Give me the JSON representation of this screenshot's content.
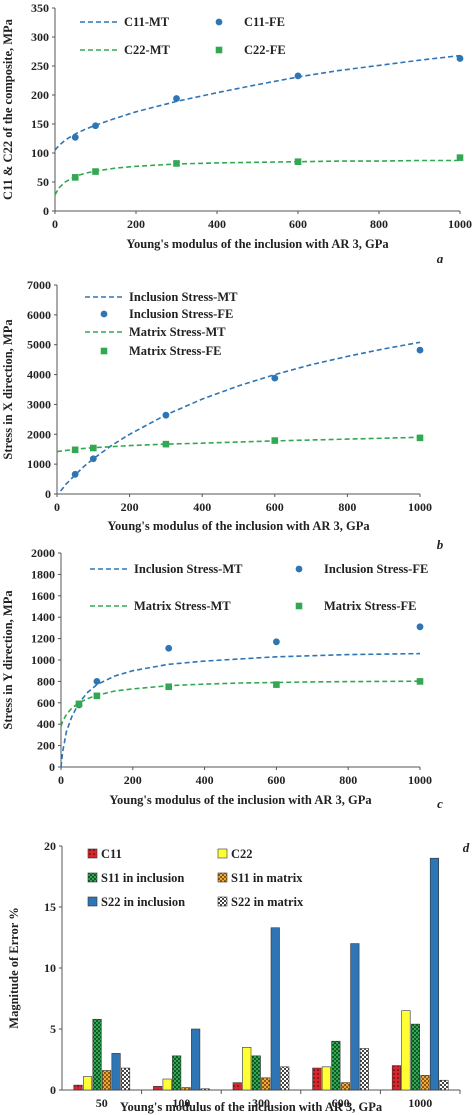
{
  "chart_data": [
    {
      "panel_label": "a",
      "type": "line",
      "xlabel": "Young's modulus of the inclusion with AR 3, GPa",
      "ylabel": "C11 & C22 of the composite, MPa",
      "xlim": [
        0,
        1000
      ],
      "ylim": [
        0,
        350
      ],
      "xticks": [
        "0",
        "200",
        "400",
        "600",
        "800",
        "1000"
      ],
      "yticks": [
        "0",
        "50",
        "100",
        "150",
        "200",
        "250",
        "300",
        "350"
      ],
      "grid": false,
      "legend_placement": "top",
      "series": [
        {
          "name": "C11-MT",
          "style": "dashed",
          "color": "#2e75b6",
          "x": [
            0,
            10,
            25,
            50,
            75,
            100,
            150,
            200,
            300,
            400,
            500,
            600,
            700,
            800,
            900,
            1000
          ],
          "y": [
            105,
            113,
            122,
            133,
            141,
            148,
            160,
            171,
            189,
            204,
            218,
            231,
            242,
            251,
            260,
            268
          ]
        },
        {
          "name": "C11-FE",
          "marker": "circle",
          "color": "#2e75b6",
          "x": [
            50,
            100,
            300,
            600,
            1000
          ],
          "y": [
            127,
            147,
            194,
            233,
            263
          ]
        },
        {
          "name": "C22-MT",
          "style": "dashed",
          "color": "#33a852",
          "x": [
            0,
            10,
            25,
            50,
            75,
            100,
            150,
            200,
            300,
            400,
            500,
            600,
            700,
            800,
            900,
            1000
          ],
          "y": [
            28,
            40,
            50,
            60,
            65,
            69,
            74,
            77,
            81,
            83,
            84,
            85,
            86,
            86,
            87,
            87
          ]
        },
        {
          "name": "C22-FE",
          "marker": "square",
          "color": "#33a852",
          "x": [
            50,
            100,
            300,
            600,
            1000
          ],
          "y": [
            58,
            68,
            82,
            85,
            92
          ]
        }
      ]
    },
    {
      "panel_label": "b",
      "type": "line",
      "xlabel": "Young's modulus of the inclusion with AR 3, GPa",
      "ylabel": "Stress in X direction, MPa",
      "xlim": [
        0,
        1000
      ],
      "ylim": [
        0,
        7000
      ],
      "xticks": [
        "0",
        "200",
        "400",
        "600",
        "800",
        "1000"
      ],
      "yticks": [
        "0",
        "1000",
        "2000",
        "3000",
        "4000",
        "5000",
        "6000",
        "7000"
      ],
      "grid": false,
      "legend_placement": "top-left",
      "series": [
        {
          "name": "Inclusion Stress-MT",
          "style": "dashed",
          "color": "#2e75b6",
          "x": [
            10,
            25,
            50,
            75,
            100,
            150,
            200,
            300,
            400,
            500,
            600,
            700,
            800,
            900,
            1000
          ],
          "y": [
            100,
            330,
            640,
            930,
            1180,
            1620,
            2000,
            2650,
            3180,
            3620,
            4000,
            4330,
            4610,
            4860,
            5080
          ]
        },
        {
          "name": "Inclusion Stress-FE",
          "marker": "circle",
          "color": "#2e75b6",
          "x": [
            50,
            100,
            300,
            600,
            1000
          ],
          "y": [
            660,
            1180,
            2640,
            3880,
            4820
          ]
        },
        {
          "name": "Matrix Stress-MT",
          "style": "dashed",
          "color": "#33a852",
          "x": [
            0,
            50,
            100,
            200,
            300,
            400,
            500,
            600,
            700,
            800,
            900,
            1000
          ],
          "y": [
            1420,
            1500,
            1550,
            1620,
            1670,
            1700,
            1740,
            1780,
            1810,
            1840,
            1870,
            1900
          ]
        },
        {
          "name": "Matrix Stress-FE",
          "marker": "square",
          "color": "#33a852",
          "x": [
            50,
            100,
            300,
            600,
            1000
          ],
          "y": [
            1480,
            1540,
            1670,
            1790,
            1880
          ]
        }
      ]
    },
    {
      "panel_label": "c",
      "type": "line",
      "xlabel": "Young's modulus of the inclusion with AR 3, GPa",
      "ylabel": "Stress in Y direction, MPa",
      "xlim": [
        0,
        1000
      ],
      "ylim": [
        0,
        2000
      ],
      "xticks": [
        "0",
        "200",
        "400",
        "600",
        "800",
        "1000"
      ],
      "yticks": [
        "0",
        "200",
        "400",
        "600",
        "800",
        "1000",
        "1200",
        "1400",
        "1600",
        "1800",
        "2000"
      ],
      "grid": false,
      "legend_placement": "top",
      "series": [
        {
          "name": "Inclusion Stress-MT",
          "style": "dashed",
          "color": "#2e75b6",
          "x": [
            0,
            5,
            15,
            30,
            50,
            75,
            100,
            150,
            200,
            300,
            400,
            500,
            600,
            700,
            800,
            900,
            1000
          ],
          "y": [
            0,
            150,
            330,
            470,
            600,
            700,
            770,
            850,
            900,
            960,
            990,
            1010,
            1030,
            1040,
            1050,
            1055,
            1060
          ]
        },
        {
          "name": "Inclusion Stress-FE",
          "marker": "circle",
          "color": "#2e75b6",
          "x": [
            50,
            100,
            300,
            600,
            1000
          ],
          "y": [
            580,
            800,
            1110,
            1170,
            1310
          ]
        },
        {
          "name": "Matrix Stress-MT",
          "style": "dashed",
          "color": "#33a852",
          "x": [
            0,
            5,
            15,
            30,
            50,
            75,
            100,
            150,
            200,
            300,
            400,
            500,
            600,
            700,
            800,
            900,
            1000
          ],
          "y": [
            380,
            430,
            490,
            550,
            600,
            640,
            670,
            710,
            730,
            760,
            775,
            785,
            790,
            795,
            798,
            800,
            802
          ]
        },
        {
          "name": "Matrix Stress-FE",
          "marker": "square",
          "color": "#33a852",
          "x": [
            50,
            100,
            300,
            600,
            1000
          ],
          "y": [
            590,
            665,
            750,
            770,
            800
          ]
        }
      ]
    },
    {
      "panel_label": "d",
      "type": "bar",
      "xlabel": "Young's modulus of the inclusion with AR 3, GPa",
      "ylabel": "Magnitude of Error %",
      "ylim": [
        0,
        20
      ],
      "yticks": [
        "0",
        "5",
        "10",
        "15",
        "20"
      ],
      "categories": [
        "50",
        "100",
        "300",
        "600",
        "1000"
      ],
      "grid": false,
      "legend_placement": "top",
      "series": [
        {
          "name": "C11",
          "color": "#d9262c",
          "pattern": "dots",
          "values": [
            0.4,
            0.3,
            0.6,
            1.8,
            2.0
          ]
        },
        {
          "name": "C22",
          "color": "#ffff33",
          "pattern": "none",
          "values": [
            1.1,
            0.9,
            3.5,
            1.9,
            6.5
          ]
        },
        {
          "name": "S11 in inclusion",
          "color": "#33a852",
          "pattern": "checker",
          "values": [
            5.8,
            2.8,
            2.8,
            4.0,
            5.4
          ]
        },
        {
          "name": "S11 in matrix",
          "color": "#f2a93b",
          "pattern": "checker",
          "values": [
            1.6,
            0.2,
            1.0,
            0.6,
            1.2
          ]
        },
        {
          "name": "S22 in inclusion",
          "color": "#2e75b6",
          "pattern": "none",
          "values": [
            3.0,
            5.0,
            13.3,
            12.0,
            19.0
          ]
        },
        {
          "name": "S22 in matrix",
          "color": "#ffffff",
          "pattern": "checker-dark",
          "values": [
            1.8,
            0.1,
            1.9,
            3.4,
            0.8
          ]
        }
      ]
    }
  ]
}
